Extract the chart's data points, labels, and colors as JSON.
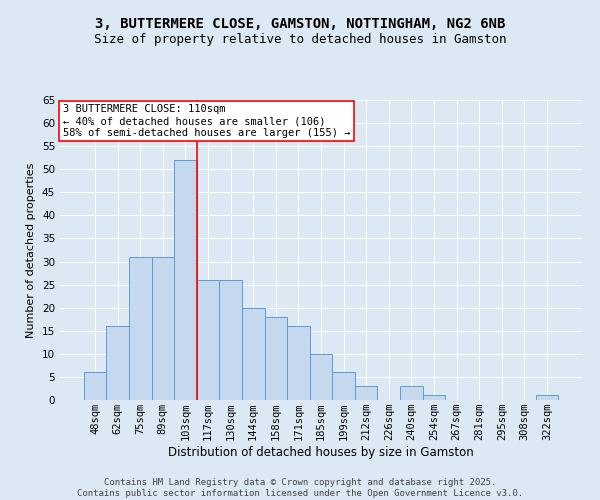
{
  "title": "3, BUTTERMERE CLOSE, GAMSTON, NOTTINGHAM, NG2 6NB",
  "subtitle": "Size of property relative to detached houses in Gamston",
  "xlabel": "Distribution of detached houses by size in Gamston",
  "ylabel": "Number of detached properties",
  "categories": [
    "48sqm",
    "62sqm",
    "75sqm",
    "89sqm",
    "103sqm",
    "117sqm",
    "130sqm",
    "144sqm",
    "158sqm",
    "171sqm",
    "185sqm",
    "199sqm",
    "212sqm",
    "226sqm",
    "240sqm",
    "254sqm",
    "267sqm",
    "281sqm",
    "295sqm",
    "308sqm",
    "322sqm"
  ],
  "values": [
    6,
    16,
    31,
    31,
    52,
    26,
    26,
    20,
    18,
    16,
    10,
    6,
    3,
    0,
    3,
    1,
    0,
    0,
    0,
    0,
    1
  ],
  "bar_color": "#c5d8ed",
  "bar_edge_color": "#5b9bd5",
  "vline_x": 4.5,
  "vline_color": "red",
  "annotation_line1": "3 BUTTERMERE CLOSE: 110sqm",
  "annotation_line2": "← 40% of detached houses are smaller (106)",
  "annotation_line3": "58% of semi-detached houses are larger (155) →",
  "annotation_box_facecolor": "white",
  "annotation_box_edgecolor": "red",
  "ylim_min": 0,
  "ylim_max": 65,
  "yticks": [
    0,
    5,
    10,
    15,
    20,
    25,
    30,
    35,
    40,
    45,
    50,
    55,
    60,
    65
  ],
  "background_color": "#dce9f5",
  "grid_color": "white",
  "grid_linewidth": 0.7,
  "footer_line1": "Contains HM Land Registry data © Crown copyright and database right 2025.",
  "footer_line2": "Contains public sector information licensed under the Open Government Licence v3.0.",
  "title_fontsize": 10,
  "subtitle_fontsize": 9,
  "ylabel_fontsize": 8,
  "xlabel_fontsize": 8.5,
  "tick_fontsize": 7.5,
  "annotation_fontsize": 7.5,
  "footer_fontsize": 6.5
}
